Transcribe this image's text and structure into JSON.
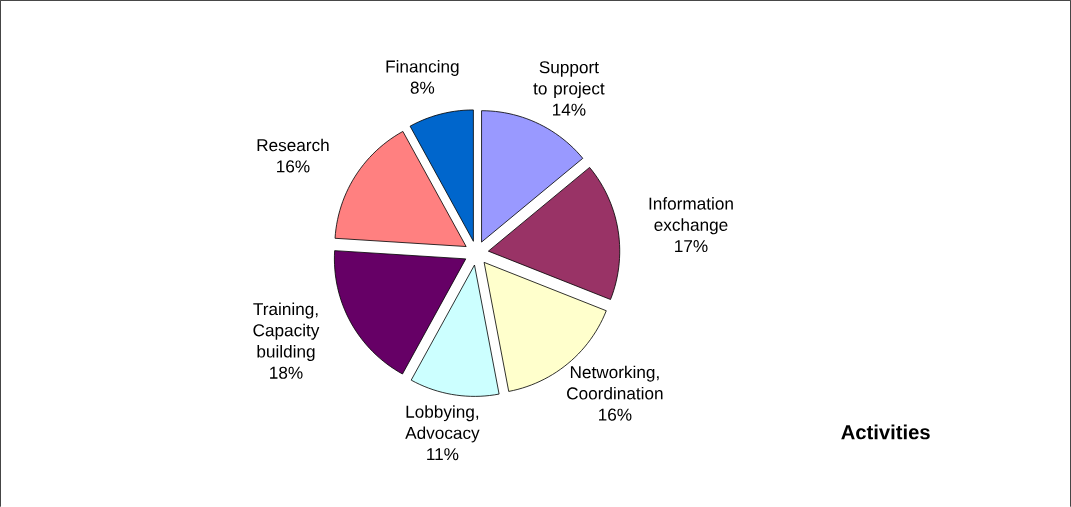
{
  "chart_data": {
    "type": "pie",
    "title": "Activities",
    "categories": [
      "Support to project",
      "Information exchange",
      "Networking, Coordination",
      "Lobbying, Advocacy",
      "Training, Capacity building",
      "Research",
      "Financing"
    ],
    "values": [
      14,
      17,
      16,
      11,
      18,
      16,
      8
    ],
    "value_labels": [
      "14%",
      "17%",
      "16%",
      "11%",
      "18%",
      "16%",
      "8%"
    ],
    "colors": [
      "#9999ff",
      "#993366",
      "#ffffcc",
      "#ccffff",
      "#660066",
      "#ff8080",
      "#0066cc"
    ]
  }
}
